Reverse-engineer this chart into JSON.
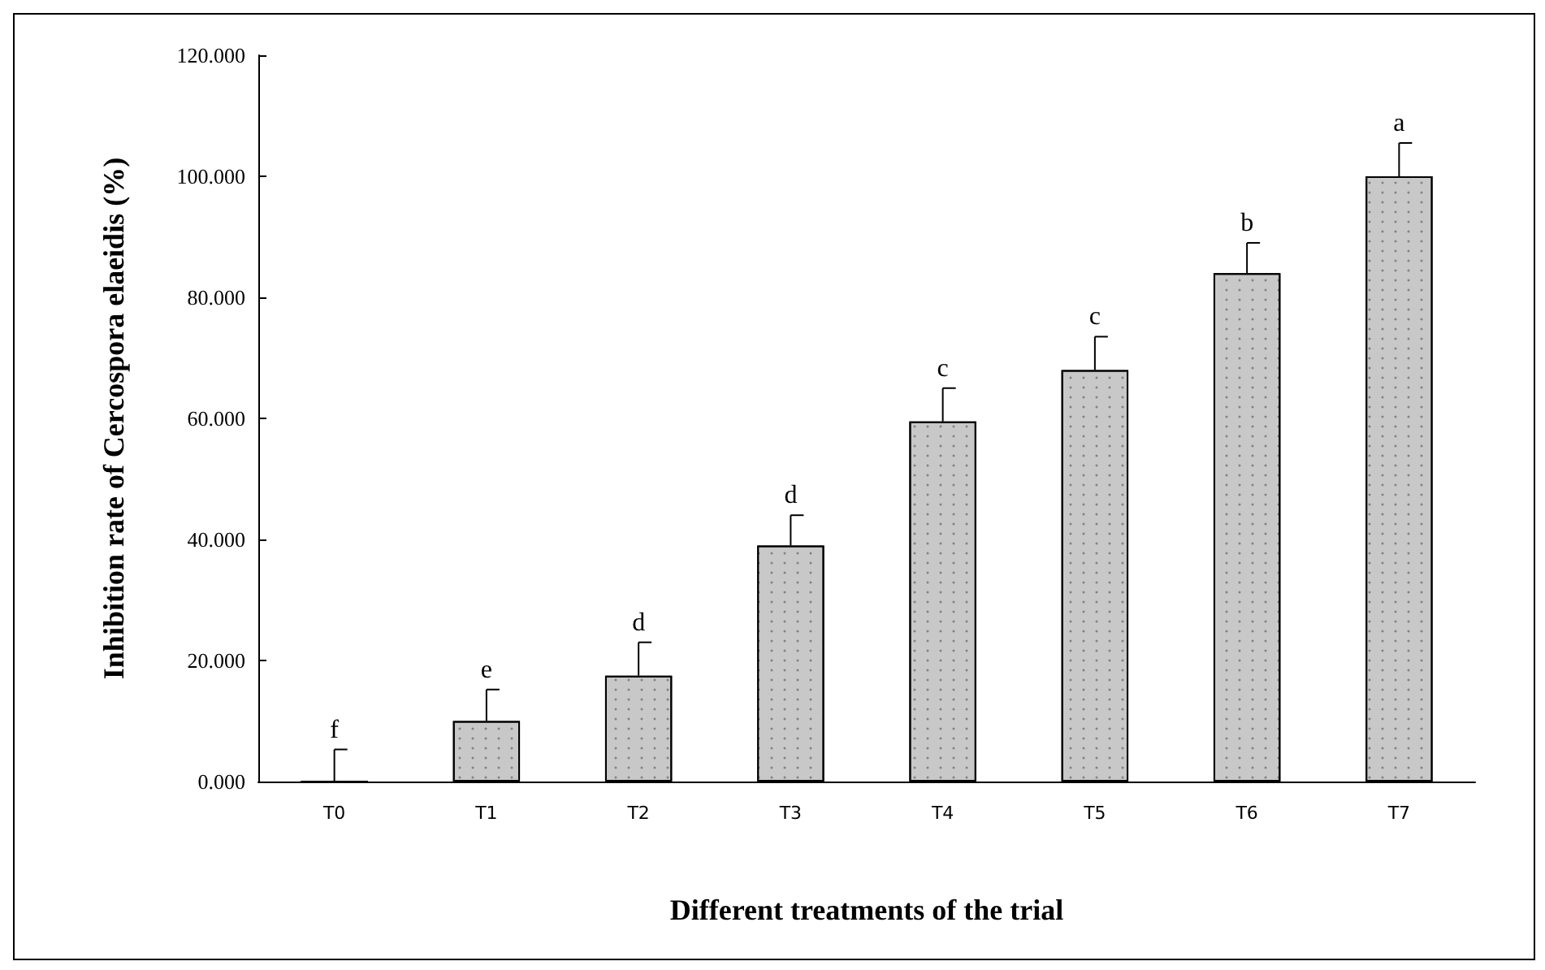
{
  "chart_data": {
    "type": "bar",
    "xlabel": "Different treatments of the trial",
    "ylabel": "Inhibition rate of Cercospora elaeidis (%)",
    "categories": [
      "T0",
      "T1",
      "T2",
      "T3",
      "T4",
      "T5",
      "T6",
      "T7"
    ],
    "values": [
      0,
      10,
      17.5,
      39,
      59.5,
      68,
      84,
      100
    ],
    "errors": [
      [
        0,
        5.3
      ],
      [
        10,
        15.2
      ],
      [
        17.5,
        23
      ],
      [
        39,
        44
      ],
      [
        59.5,
        65
      ],
      [
        68,
        73.5
      ],
      [
        84,
        89
      ],
      [
        100,
        105.5
      ]
    ],
    "color": "#c8c8c8",
    "ylim": [
      0,
      120
    ],
    "yticks": [
      {
        "value": 0,
        "label": "0.000"
      },
      {
        "value": 20,
        "label": "20.000"
      },
      {
        "value": 40,
        "label": "40.000"
      },
      {
        "value": 60,
        "label": "60.000"
      },
      {
        "value": 80,
        "label": "80.000"
      },
      {
        "value": 100,
        "label": "100.000"
      },
      {
        "value": 120,
        "label": "120.000"
      }
    ],
    "annotations": [
      {
        "text": "f",
        "x": "T0",
        "y": 5.3
      },
      {
        "text": "e",
        "x": "T1",
        "y": 15.2
      },
      {
        "text": "d",
        "x": "T2",
        "y": 23
      },
      {
        "text": "d",
        "x": "T3",
        "y": 44
      },
      {
        "text": "c",
        "x": "T4",
        "y": 65
      },
      {
        "text": "c",
        "x": "T5",
        "y": 73.5
      },
      {
        "text": "b",
        "x": "T6",
        "y": 89
      },
      {
        "text": "a",
        "x": "T7",
        "y": 105.5
      }
    ],
    "grid": false
  }
}
